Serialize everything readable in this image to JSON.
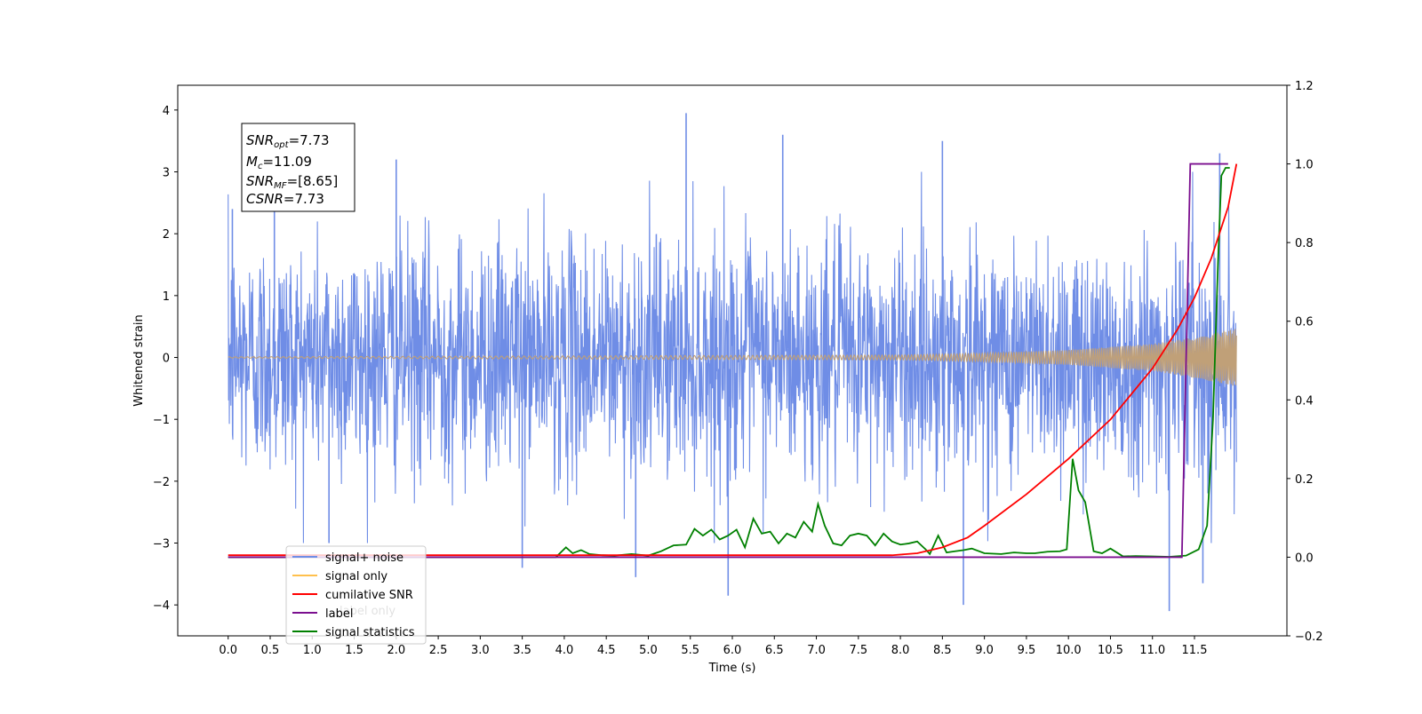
{
  "chart_data": {
    "type": "line",
    "title": "",
    "xlabel": "Time (s)",
    "ylabel": "Whitened strain",
    "y2label": "",
    "xlim": [
      -0.6,
      12.6
    ],
    "ylim": [
      -4.5,
      4.4
    ],
    "y2lim": [
      -0.2,
      1.2
    ],
    "x_ticks": [
      "0.0",
      "0.5",
      "1.0",
      "1.5",
      "2.0",
      "2.5",
      "3.0",
      "3.5",
      "4.0",
      "4.5",
      "5.0",
      "5.5",
      "6.0",
      "6.5",
      "7.0",
      "7.5",
      "8.0",
      "8.5",
      "9.0",
      "9.5",
      "10.0",
      "10.5",
      "11.0",
      "11.5"
    ],
    "y_ticks": [
      "4",
      "3",
      "2",
      "1",
      "0",
      "−1",
      "−2",
      "−3",
      "−4"
    ],
    "y2_ticks": [
      "1.2",
      "1.0",
      "0.8",
      "0.6",
      "0.4",
      "0.2",
      "0.0",
      "−0.2"
    ],
    "grid": false,
    "legend_position": "lower-left",
    "annotation": {
      "snr_opt": {
        "name": "SNR",
        "sub": "opt",
        "value": "=7.73"
      },
      "mc": {
        "name": "M",
        "sub": "c",
        "value": "=11.09"
      },
      "snr_mf": {
        "name": "SNR",
        "sub": "MF",
        "value": "=[8.65]"
      },
      "csnr": {
        "name": "CSNR",
        "sub": "",
        "value": "=7.73"
      }
    },
    "series": [
      {
        "name": "signal+ noise",
        "color": "#6f8de6",
        "axis": "left",
        "description": "whitened noise, approx. zero mean, unit variance, x 0 to 12.0",
        "x_range": [
          0.0,
          12.0
        ],
        "envelope": [
          -2.6,
          2.6
        ],
        "spikes": [
          {
            "x": 0.05,
            "y": 2.4
          },
          {
            "x": 0.55,
            "y": 3.0
          },
          {
            "x": 1.2,
            "y": -3.0
          },
          {
            "x": 2.0,
            "y": 3.2
          },
          {
            "x": 3.5,
            "y": -3.4
          },
          {
            "x": 4.85,
            "y": -3.55
          },
          {
            "x": 5.45,
            "y": 3.95
          },
          {
            "x": 5.95,
            "y": -3.85
          },
          {
            "x": 6.6,
            "y": 3.6
          },
          {
            "x": 8.5,
            "y": 3.5
          },
          {
            "x": 8.75,
            "y": -4.0
          },
          {
            "x": 11.2,
            "y": -4.1
          },
          {
            "x": 11.6,
            "y": -3.65
          },
          {
            "x": 11.8,
            "y": 3.3
          }
        ]
      },
      {
        "name": "signal only",
        "color": "#ffc04d",
        "axis": "left",
        "description": "chirp, amplitude grows toward merger",
        "amplitude": [
          {
            "x": 0.0,
            "y": 0.01
          },
          {
            "x": 8.0,
            "y": 0.04
          },
          {
            "x": 9.0,
            "y": 0.07
          },
          {
            "x": 10.0,
            "y": 0.12
          },
          {
            "x": 11.0,
            "y": 0.22
          },
          {
            "x": 11.5,
            "y": 0.33
          },
          {
            "x": 12.0,
            "y": 0.47
          }
        ]
      },
      {
        "name": "cumilative SNR",
        "color": "#ff0000",
        "axis": "right",
        "x": [
          0.0,
          7.9,
          8.2,
          8.5,
          8.8,
          9.0,
          9.5,
          10.0,
          10.5,
          11.0,
          11.3,
          11.5,
          11.7,
          11.9,
          12.0
        ],
        "y": [
          0.005,
          0.005,
          0.01,
          0.025,
          0.05,
          0.08,
          0.16,
          0.25,
          0.35,
          0.48,
          0.58,
          0.66,
          0.76,
          0.89,
          1.0
        ]
      },
      {
        "name": "label",
        "color": "#7b0f8f",
        "axis": "right",
        "x": [
          0.0,
          11.35,
          11.45,
          11.9
        ],
        "y": [
          0.0,
          0.0,
          1.0,
          1.0
        ]
      },
      {
        "name": "signal statistics",
        "color": "#008000",
        "axis": "right",
        "x": [
          0.0,
          3.9,
          4.02,
          4.1,
          4.2,
          4.3,
          4.45,
          4.6,
          4.8,
          5.0,
          5.15,
          5.3,
          5.45,
          5.55,
          5.65,
          5.75,
          5.85,
          5.95,
          6.05,
          6.15,
          6.25,
          6.35,
          6.45,
          6.55,
          6.65,
          6.75,
          6.85,
          6.95,
          7.02,
          7.1,
          7.2,
          7.3,
          7.4,
          7.5,
          7.6,
          7.7,
          7.8,
          7.9,
          8.0,
          8.1,
          8.2,
          8.3,
          8.35,
          8.45,
          8.55,
          8.65,
          8.75,
          8.85,
          9.0,
          9.2,
          9.35,
          9.5,
          9.6,
          9.75,
          9.9,
          9.98,
          10.05,
          10.12,
          10.2,
          10.3,
          10.4,
          10.5,
          10.65,
          10.8,
          11.0,
          11.2,
          11.4,
          11.55,
          11.65,
          11.72,
          11.78,
          11.82,
          11.87,
          11.92
        ],
        "y": [
          0.0,
          0.0,
          0.025,
          0.01,
          0.018,
          0.008,
          0.005,
          0.004,
          0.008,
          0.004,
          0.015,
          0.03,
          0.032,
          0.072,
          0.055,
          0.07,
          0.045,
          0.055,
          0.07,
          0.025,
          0.098,
          0.06,
          0.065,
          0.035,
          0.06,
          0.05,
          0.09,
          0.065,
          0.135,
          0.08,
          0.035,
          0.03,
          0.055,
          0.06,
          0.055,
          0.03,
          0.06,
          0.04,
          0.032,
          0.035,
          0.04,
          0.02,
          0.008,
          0.055,
          0.012,
          0.015,
          0.018,
          0.022,
          0.01,
          0.008,
          0.012,
          0.01,
          0.01,
          0.014,
          0.015,
          0.02,
          0.25,
          0.17,
          0.14,
          0.015,
          0.01,
          0.022,
          0.002,
          0.003,
          0.002,
          0.001,
          0.004,
          0.02,
          0.08,
          0.35,
          0.75,
          0.97,
          0.99,
          0.99
        ]
      }
    ],
    "legend": [
      {
        "label": "signal+ noise",
        "color": "#6f8de6"
      },
      {
        "label": "signal only",
        "color": "#ffc04d"
      },
      {
        "label": "cumilative SNR",
        "color": "#ff0000"
      },
      {
        "label": "label",
        "color": "#7b0f8f"
      },
      {
        "label": "signal statistics",
        "color": "#008000"
      }
    ],
    "legend_hidden_text": "label only"
  }
}
